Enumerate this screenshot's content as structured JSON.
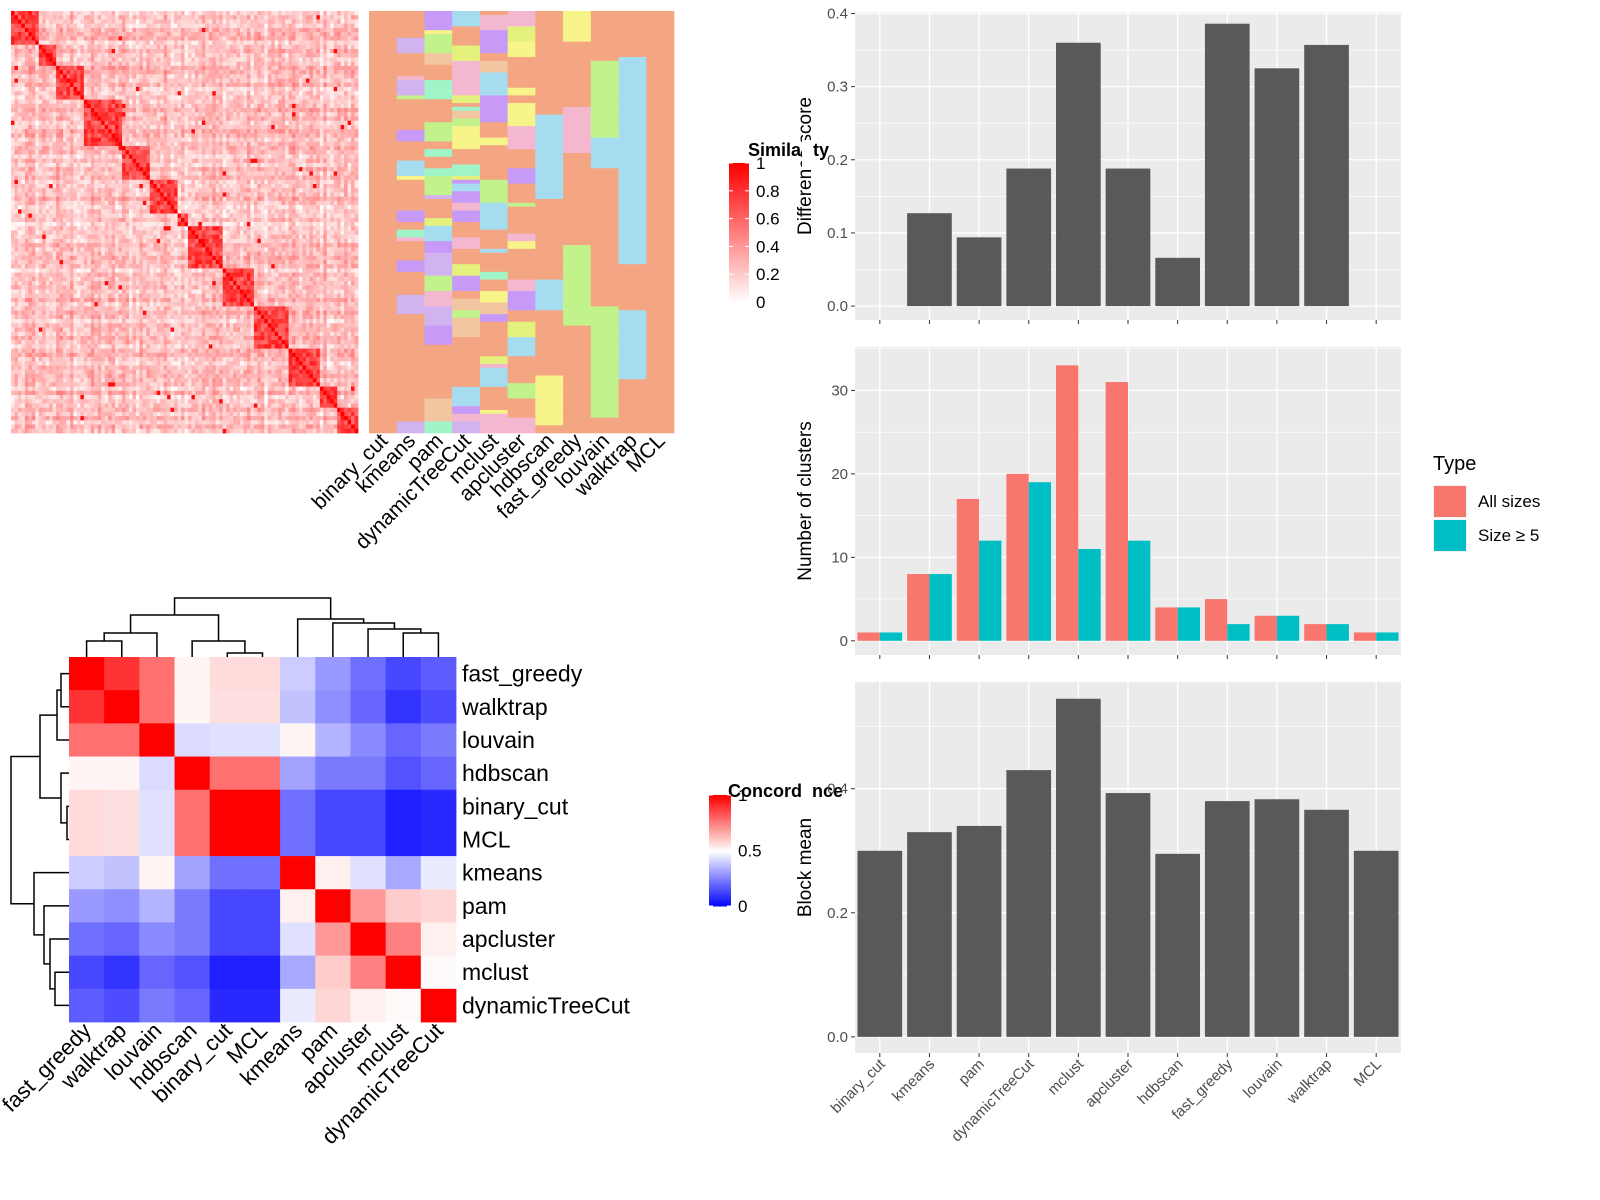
{
  "methods": [
    "binary_cut",
    "kmeans",
    "pam",
    "dynamicTreeCut",
    "mclust",
    "apcluster",
    "hdbscan",
    "fast_greedy",
    "louvain",
    "walktrap",
    "MCL"
  ],
  "colors": {
    "sim_high": "#ff0000",
    "sim_low": "#ffffff",
    "conc_high": "#ff0000",
    "conc_mid": "#ffffff",
    "conc_low": "#0000ff",
    "bar": "#595959",
    "panel_bg": "#ebebeb",
    "grid": "#ffffff",
    "all_sizes": "#f8766d",
    "size_ge5": "#00bfc4"
  },
  "cluster_palette": [
    "#f4a582",
    "#a6dcef",
    "#c2f28b",
    "#f7f58a",
    "#f4b7d0",
    "#d1b3f0",
    "#a0f5c8",
    "#c79af7",
    "#f2c6a0",
    "#e4f27d"
  ],
  "similarity_legend": {
    "title": "Similarity",
    "ticks": [
      "1",
      "0.8",
      "0.6",
      "0.4",
      "0.2",
      "0"
    ]
  },
  "concordance_legend": {
    "title": "Concordance",
    "ticks": [
      "1",
      "0.5",
      "0"
    ]
  },
  "chart_data": [
    {
      "type": "heatmap",
      "name": "similarity-heatmap-with-cluster-columns",
      "columns": [
        "binary_cut",
        "kmeans",
        "pam",
        "dynamicTreeCut",
        "mclust",
        "apcluster",
        "hdbscan",
        "fast_greedy",
        "louvain",
        "walktrap",
        "MCL"
      ],
      "scale": [
        0,
        1
      ]
    },
    {
      "type": "heatmap",
      "name": "concordance-heatmap",
      "rows": [
        "fast_greedy",
        "walktrap",
        "louvain",
        "hdbscan",
        "binary_cut",
        "MCL",
        "kmeans",
        "pam",
        "apcluster",
        "mclust",
        "dynamicTreeCut"
      ],
      "columns": [
        "fast_greedy",
        "walktrap",
        "louvain",
        "hdbscan",
        "binary_cut",
        "MCL",
        "kmeans",
        "pam",
        "apcluster",
        "mclust",
        "dynamicTreeCut"
      ],
      "values": [
        [
          1.0,
          0.9,
          0.78,
          0.52,
          0.57,
          0.57,
          0.4,
          0.3,
          0.22,
          0.14,
          0.18
        ],
        [
          0.9,
          1.0,
          0.78,
          0.52,
          0.56,
          0.56,
          0.38,
          0.28,
          0.2,
          0.1,
          0.15
        ],
        [
          0.78,
          0.78,
          1.0,
          0.43,
          0.44,
          0.44,
          0.52,
          0.35,
          0.27,
          0.2,
          0.24
        ],
        [
          0.52,
          0.52,
          0.43,
          1.0,
          0.78,
          0.78,
          0.32,
          0.24,
          0.24,
          0.16,
          0.2
        ],
        [
          0.57,
          0.56,
          0.44,
          0.78,
          1.0,
          1.0,
          0.22,
          0.14,
          0.14,
          0.06,
          0.08
        ],
        [
          0.57,
          0.56,
          0.44,
          0.78,
          1.0,
          1.0,
          0.22,
          0.14,
          0.14,
          0.06,
          0.08
        ],
        [
          0.4,
          0.38,
          0.52,
          0.32,
          0.22,
          0.22,
          1.0,
          0.53,
          0.44,
          0.33,
          0.46
        ],
        [
          0.3,
          0.28,
          0.35,
          0.24,
          0.14,
          0.14,
          0.53,
          1.0,
          0.7,
          0.6,
          0.58
        ],
        [
          0.22,
          0.2,
          0.27,
          0.24,
          0.14,
          0.14,
          0.44,
          0.7,
          1.0,
          0.75,
          0.53
        ],
        [
          0.14,
          0.1,
          0.2,
          0.16,
          0.06,
          0.06,
          0.33,
          0.6,
          0.75,
          1.0,
          0.51
        ],
        [
          0.18,
          0.15,
          0.24,
          0.2,
          0.08,
          0.08,
          0.46,
          0.58,
          0.53,
          0.51,
          1.0
        ]
      ],
      "scale": [
        0,
        1
      ]
    },
    {
      "type": "bar",
      "name": "difference-score",
      "categories": [
        "binary_cut",
        "kmeans",
        "pam",
        "dynamicTreeCut",
        "mclust",
        "apcluster",
        "hdbscan",
        "fast_greedy",
        "louvain",
        "walktrap",
        "MCL"
      ],
      "values": [
        0.0,
        0.127,
        0.094,
        0.188,
        0.36,
        0.188,
        0.066,
        0.386,
        0.325,
        0.357,
        0.0
      ],
      "ylabel": "Difference score",
      "ylim": [
        -0.019,
        0.402
      ],
      "yticks": [
        "0.0",
        "0.1",
        "0.2",
        "0.3",
        "0.4"
      ]
    },
    {
      "type": "bar",
      "name": "number-of-clusters",
      "categories": [
        "binary_cut",
        "kmeans",
        "pam",
        "dynamicTreeCut",
        "mclust",
        "apcluster",
        "hdbscan",
        "fast_greedy",
        "louvain",
        "walktrap",
        "MCL"
      ],
      "series": [
        {
          "name": "All sizes",
          "values": [
            1,
            8,
            17,
            20,
            33,
            31,
            4,
            5,
            3,
            2,
            1
          ]
        },
        {
          "name": "Size ≥ 5",
          "values": [
            1,
            8,
            12,
            19,
            11,
            12,
            4,
            2,
            3,
            2,
            1
          ]
        }
      ],
      "ylabel": "Number of clusters",
      "ylim": [
        -1.7,
        35.2
      ],
      "yticks": [
        "0",
        "10",
        "20",
        "30"
      ],
      "legend": {
        "title": "Type",
        "position": "right"
      }
    },
    {
      "type": "bar",
      "name": "block-mean",
      "categories": [
        "binary_cut",
        "kmeans",
        "pam",
        "dynamicTreeCut",
        "mclust",
        "apcluster",
        "hdbscan",
        "fast_greedy",
        "louvain",
        "walktrap",
        "MCL"
      ],
      "values": [
        0.3,
        0.33,
        0.34,
        0.43,
        0.545,
        0.393,
        0.295,
        0.38,
        0.383,
        0.366,
        0.3
      ],
      "ylabel": "Block mean",
      "ylim": [
        -0.026,
        0.572
      ],
      "yticks": [
        "0.0",
        "0.2",
        "0.4"
      ]
    }
  ]
}
